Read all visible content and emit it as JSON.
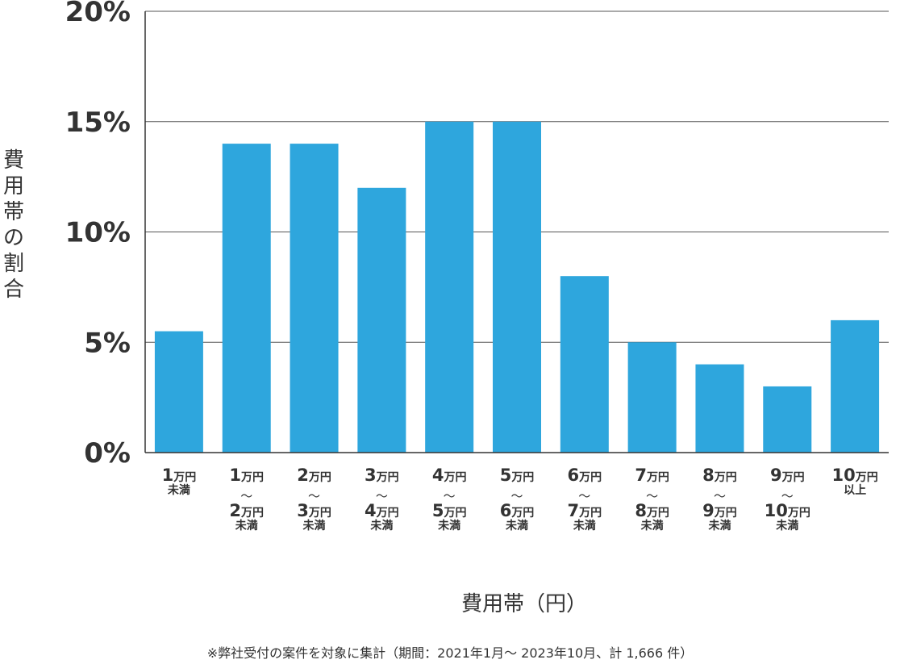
{
  "chart_data": {
    "type": "bar",
    "categories": [
      [
        "1万円",
        "未満"
      ],
      [
        "1万円",
        "〜",
        "2万円",
        "未満"
      ],
      [
        "2万円",
        "〜",
        "3万円",
        "未満"
      ],
      [
        "3万円",
        "〜",
        "4万円",
        "未満"
      ],
      [
        "4万円",
        "〜",
        "5万円",
        "未満"
      ],
      [
        "5万円",
        "〜",
        "6万円",
        "未満"
      ],
      [
        "6万円",
        "〜",
        "7万円",
        "未満"
      ],
      [
        "7万円",
        "〜",
        "8万円",
        "未満"
      ],
      [
        "8万円",
        "〜",
        "9万円",
        "未満"
      ],
      [
        "9万円",
        "〜",
        "10万円",
        "未満"
      ],
      [
        "10万円",
        "以上"
      ]
    ],
    "values": [
      5.5,
      14,
      14,
      12,
      15,
      15,
      8,
      5,
      4,
      3,
      6
    ],
    "ylim": [
      0,
      20
    ],
    "yticks": [
      0,
      5,
      10,
      15,
      20
    ],
    "ytick_suffix": "%",
    "ylabel": "費用帯の割合",
    "xlabel": "費用帯（円）",
    "bar_color": "#2ea6dd",
    "grid": true
  },
  "footnote": "※弊社受付の案件を対象に集計（期間：2021年1月～ 2023年10月、計 1,666 件）"
}
